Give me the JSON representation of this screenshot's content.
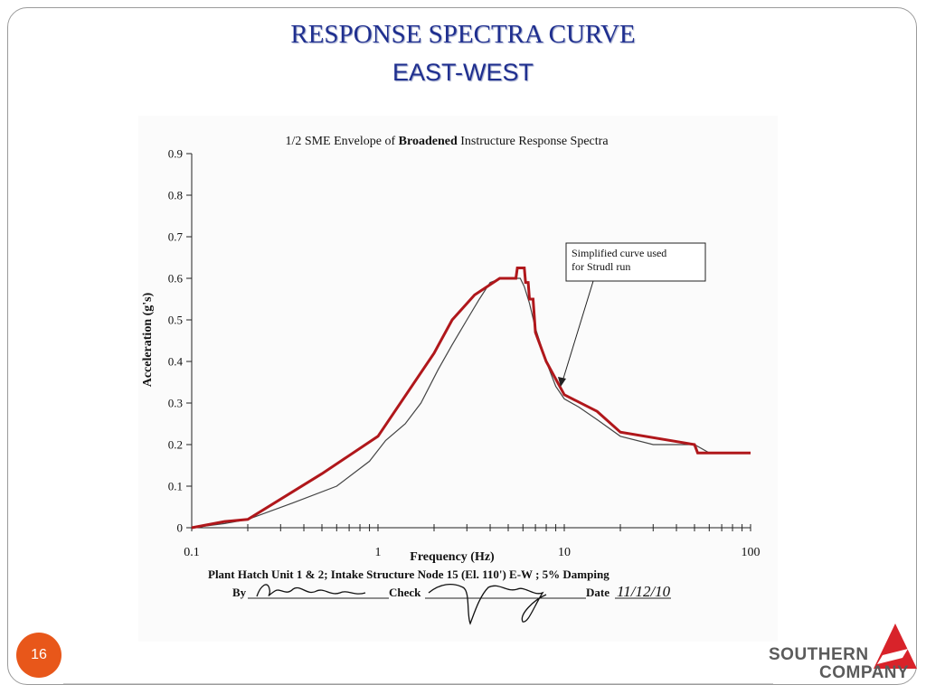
{
  "slide": {
    "title_line1": "RESPONSE SPECTRA CURVE",
    "title_line2": "EAST-WEST",
    "page_number": "16",
    "logo_line1": "SOUTHERN",
    "logo_line2": "COMPANY"
  },
  "colors": {
    "title": "#1f2f8f",
    "envelope": "#b0171b",
    "spectrum": "#444444",
    "badge": "#e8571a",
    "logo_triangle": "#d8232a"
  },
  "chart_data": {
    "type": "line",
    "title_prefix": "1/2 SME Envelope of ",
    "title_bold": "Broadened",
    "title_suffix": " Instructure Response Spectra",
    "xlabel": "Frequency (Hz)",
    "ylabel": "Acceleration (g's)",
    "x_scale": "log",
    "xlim": [
      0.1,
      100
    ],
    "ylim": [
      0,
      0.9
    ],
    "x_ticks": [
      0.1,
      1,
      10,
      100
    ],
    "x_tick_labels": [
      "0.1",
      "1",
      "10",
      "100"
    ],
    "y_ticks": [
      0,
      0.1,
      0.2,
      0.3,
      0.4,
      0.5,
      0.6,
      0.7,
      0.8,
      0.9
    ],
    "y_tick_labels": [
      "0",
      "0.1",
      "0.2",
      "0.3",
      "0.4",
      "0.5",
      "0.6",
      "0.7",
      "0.8",
      "0.9"
    ],
    "grid": false,
    "series": [
      {
        "x": [
          0.1,
          0.15,
          0.2,
          0.35,
          0.6,
          0.9,
          1.1,
          1.4,
          1.7,
          2.1,
          2.5,
          3.0,
          3.5,
          4.0,
          4.6,
          5.3,
          5.8,
          6.1,
          6.5,
          7.0,
          8.0,
          9.0,
          10.0,
          12.0,
          15.0,
          20.0,
          30.0,
          40.0,
          50.0,
          60.0,
          100.0
        ],
        "y": [
          0.0,
          0.01,
          0.02,
          0.06,
          0.1,
          0.16,
          0.21,
          0.25,
          0.3,
          0.38,
          0.44,
          0.5,
          0.55,
          0.59,
          0.6,
          0.6,
          0.6,
          0.58,
          0.54,
          0.48,
          0.4,
          0.34,
          0.31,
          0.29,
          0.26,
          0.22,
          0.2,
          0.2,
          0.2,
          0.18,
          0.18
        ]
      },
      {
        "x": [
          0.1,
          0.15,
          0.2,
          0.5,
          1.0,
          2.0,
          2.5,
          3.3,
          4.5,
          5.5,
          5.6,
          6.1,
          6.2,
          6.4,
          6.5,
          6.8,
          7.0,
          8.0,
          10.0,
          15.0,
          20.0,
          50.0,
          52.0,
          100.0
        ],
        "y": [
          0.0,
          0.015,
          0.02,
          0.13,
          0.22,
          0.42,
          0.5,
          0.56,
          0.6,
          0.6,
          0.625,
          0.625,
          0.59,
          0.59,
          0.55,
          0.55,
          0.47,
          0.4,
          0.32,
          0.28,
          0.23,
          0.2,
          0.18,
          0.18
        ]
      }
    ],
    "annotation": [
      "Simplified curve used",
      "for Strudl run"
    ],
    "caption": "Plant Hatch Unit 1 & 2; Intake Structure Node 15 (El. 110') E-W ; 5% Damping",
    "sign_by_label": "By",
    "sign_check_label": "Check",
    "sign_date_label": "Date",
    "sign_date_value": "11/12/10"
  }
}
